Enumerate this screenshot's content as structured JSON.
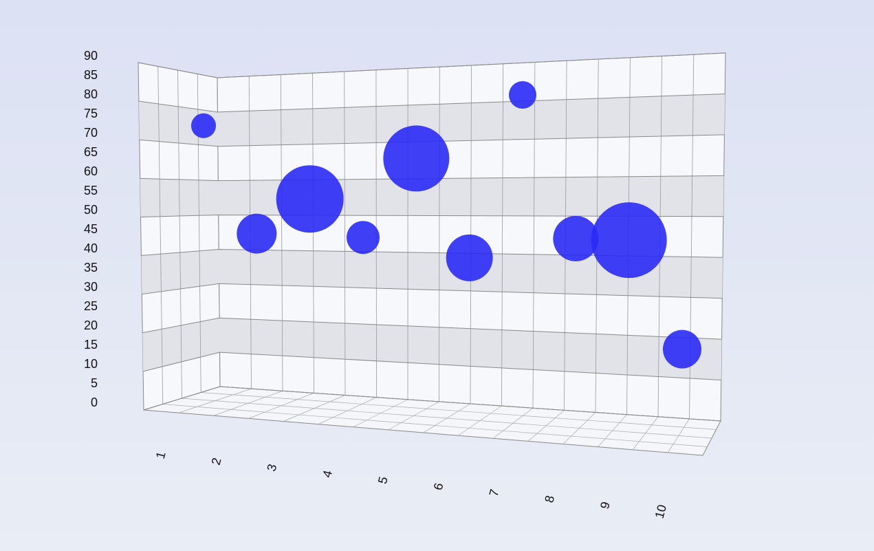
{
  "chart_data": {
    "type": "bubble3d",
    "x": [
      1,
      2,
      3,
      4,
      5,
      6,
      7,
      8,
      9,
      10
    ],
    "series": [
      {
        "color": "#2a2af5",
        "values": [
          72,
          44,
          53,
          43,
          63.5,
          37.7,
          80,
          42.7,
          42.3,
          14
        ],
        "sizes": [
          18,
          29,
          49,
          24,
          48,
          34,
          20,
          33,
          55,
          28
        ]
      }
    ],
    "xlim": [
      1,
      10
    ],
    "xticks": [
      1,
      2,
      3,
      4,
      5,
      6,
      7,
      8,
      9,
      10
    ],
    "ylim": [
      0,
      90
    ],
    "yticks": [
      0,
      5,
      10,
      15,
      20,
      25,
      30,
      35,
      40,
      45,
      50,
      55,
      60,
      65,
      70,
      75,
      80,
      85,
      90
    ],
    "grid": true
  }
}
